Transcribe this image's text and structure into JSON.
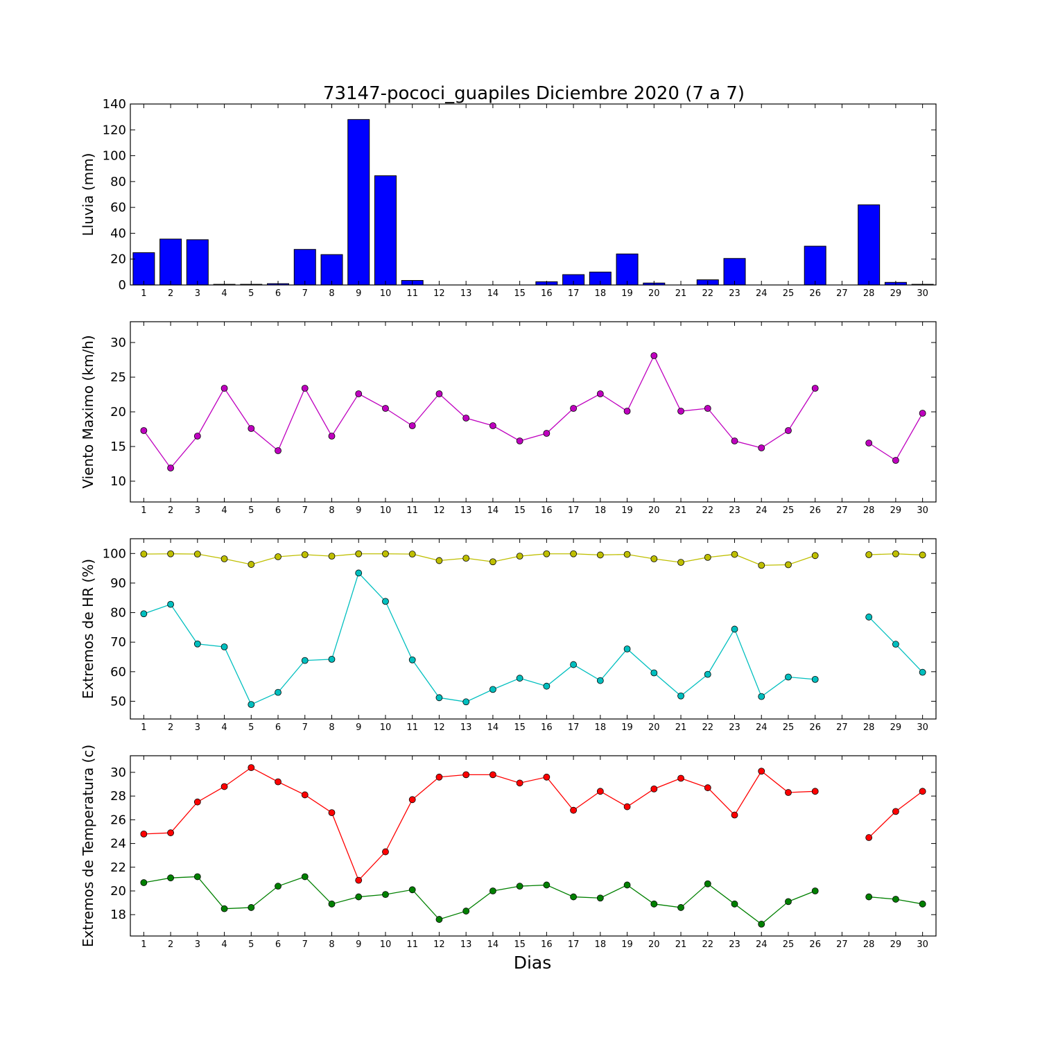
{
  "title": "73147-pococi_guapiles Diciembre 2020  (7 a 7)",
  "xlabel": "Dias",
  "chart_data": [
    {
      "type": "bar",
      "ylabel": "Lluvia (mm)",
      "ylim": [
        0,
        140
      ],
      "yticks": [
        0,
        20,
        40,
        60,
        80,
        100,
        120,
        140
      ],
      "categories": [
        1,
        2,
        3,
        4,
        5,
        6,
        7,
        8,
        9,
        10,
        11,
        12,
        13,
        14,
        15,
        16,
        17,
        18,
        19,
        20,
        21,
        22,
        23,
        24,
        25,
        26,
        27,
        28,
        29,
        30
      ],
      "colors": {
        "bar": "#0000ff"
      },
      "values": [
        25,
        35.5,
        35,
        0.5,
        0.5,
        1,
        27.5,
        23.5,
        128,
        84.5,
        3.5,
        0,
        0,
        0,
        0,
        2.5,
        8,
        10,
        24,
        1.5,
        0,
        4,
        20.5,
        0,
        0,
        30,
        0,
        62,
        2,
        0.5
      ]
    },
    {
      "type": "line",
      "ylabel": "Viento Maximo (km/h)",
      "ylim": [
        7,
        33
      ],
      "yticks": [
        10,
        15,
        20,
        25,
        30
      ],
      "x": [
        1,
        2,
        3,
        4,
        5,
        6,
        7,
        8,
        9,
        10,
        11,
        12,
        13,
        14,
        15,
        16,
        17,
        18,
        19,
        20,
        21,
        22,
        23,
        24,
        25,
        26,
        27,
        28,
        29,
        30
      ],
      "series": [
        {
          "color": "#bf00bf",
          "values": [
            17.3,
            11.9,
            16.5,
            23.4,
            17.6,
            14.4,
            23.4,
            16.5,
            22.6,
            20.5,
            18,
            22.6,
            19.1,
            18,
            15.8,
            16.9,
            20.5,
            22.6,
            20.1,
            28.1,
            20.1,
            20.5,
            15.8,
            14.8,
            17.3,
            23.4,
            null,
            15.5,
            13,
            19.8
          ]
        }
      ]
    },
    {
      "type": "line",
      "ylabel": "Extremos de HR (%)",
      "ylim": [
        44,
        105
      ],
      "yticks": [
        50,
        60,
        70,
        80,
        90,
        100
      ],
      "x": [
        1,
        2,
        3,
        4,
        5,
        6,
        7,
        8,
        9,
        10,
        11,
        12,
        13,
        14,
        15,
        16,
        17,
        18,
        19,
        20,
        21,
        22,
        23,
        24,
        25,
        26,
        27,
        28,
        29,
        30
      ],
      "series": [
        {
          "color": "#bfbf00",
          "values": [
            99.8,
            99.9,
            99.8,
            98.2,
            96.3,
            98.9,
            99.6,
            99.1,
            99.9,
            99.9,
            99.8,
            97.6,
            98.4,
            97.2,
            99.1,
            99.9,
            99.9,
            99.5,
            99.7,
            98.2,
            97,
            98.7,
            99.7,
            96,
            96.2,
            99.3,
            null,
            99.6,
            99.9,
            99.5
          ]
        },
        {
          "color": "#00bfbf",
          "values": [
            79.6,
            82.8,
            69.4,
            68.4,
            48.9,
            53,
            63.8,
            64.2,
            93.4,
            83.8,
            64,
            51.2,
            49.8,
            54,
            57.8,
            55.1,
            62.4,
            57,
            67.7,
            59.6,
            51.8,
            59.1,
            74.4,
            51.6,
            58.2,
            57.4,
            null,
            78.5,
            69.3,
            59.8
          ]
        }
      ]
    },
    {
      "type": "line",
      "ylabel": "Extremos de Temperatura (c)",
      "ylim": [
        16.2,
        31.4
      ],
      "yticks": [
        18,
        20,
        22,
        24,
        26,
        28,
        30
      ],
      "x": [
        1,
        2,
        3,
        4,
        5,
        6,
        7,
        8,
        9,
        10,
        11,
        12,
        13,
        14,
        15,
        16,
        17,
        18,
        19,
        20,
        21,
        22,
        23,
        24,
        25,
        26,
        27,
        28,
        29,
        30
      ],
      "series": [
        {
          "color": "#ff0000",
          "values": [
            24.8,
            24.9,
            27.5,
            28.8,
            30.4,
            29.2,
            28.1,
            26.6,
            20.9,
            23.3,
            27.7,
            29.6,
            29.8,
            29.8,
            29.1,
            29.6,
            26.8,
            28.4,
            27.1,
            28.6,
            29.5,
            28.7,
            26.4,
            30.1,
            28.3,
            28.4,
            null,
            24.5,
            26.7,
            28.4
          ]
        },
        {
          "color": "#008000",
          "values": [
            20.7,
            21.1,
            21.2,
            18.5,
            18.6,
            20.4,
            21.2,
            18.9,
            19.5,
            19.7,
            20.1,
            17.6,
            18.3,
            20,
            20.4,
            20.5,
            19.5,
            19.4,
            20.5,
            18.9,
            18.6,
            20.6,
            18.9,
            17.2,
            19.1,
            20,
            null,
            19.5,
            19.3,
            18.9
          ]
        }
      ]
    }
  ]
}
